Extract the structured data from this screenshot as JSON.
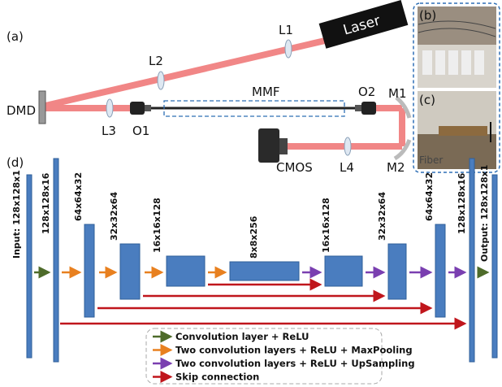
{
  "panel_a": {
    "label": "(a)",
    "laser": "Laser",
    "l1": "L1",
    "l2": "L2",
    "l3": "L3",
    "l4": "L4",
    "dmd": "DMD",
    "o1": "O1",
    "o2": "O2",
    "mmf": "MMF",
    "m1": "M1",
    "m2": "M2",
    "cmos": "CMOS"
  },
  "panel_b": {
    "label": "(b)"
  },
  "panel_c": {
    "label": "(c)",
    "fiber": "Fiber"
  },
  "panel_d": {
    "label": "(d)",
    "layers": [
      "Input: 128x128x1",
      "128x128x16",
      "64x64x32",
      "32x32x64",
      "16x16x128",
      "8x8x256",
      "16x16x128",
      "32x32x64",
      "64x64x32",
      "128x128x16",
      "Output: 128x128x1"
    ],
    "legend": [
      "Convolution layer + ReLU",
      "Two convolution layers + ReLU + MaxPooling",
      "Two convolution layers + ReLU + UpSampling",
      "Skip connection"
    ]
  }
}
